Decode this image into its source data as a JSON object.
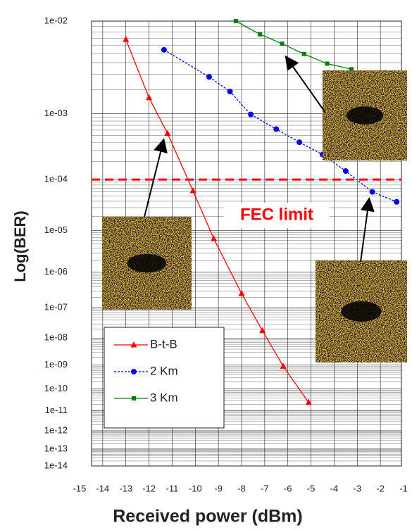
{
  "chart_data": {
    "type": "line",
    "x_label": "Received power (dBm)",
    "y_label": "Log(BER)",
    "yscale": "loglog",
    "grid": true,
    "legend": "lower left",
    "xlim": [
      -15,
      -1
    ],
    "xticks": [
      -15,
      -14,
      -13,
      -12,
      -11,
      -10,
      -9,
      -8,
      -7,
      -6,
      -5,
      -4,
      -3,
      -2,
      -1
    ],
    "ylim": [
      0.01,
      1e-14
    ],
    "yticks": [
      {
        "value": 0.01,
        "label": "1e-02"
      },
      {
        "value": 0.001,
        "label": "1e-03"
      },
      {
        "value": 0.0001,
        "label": "1e-04"
      },
      {
        "value": 1e-05,
        "label": "1e-05"
      },
      {
        "value": 1e-06,
        "label": "1e-06"
      },
      {
        "value": 1e-07,
        "label": "1e-07"
      },
      {
        "value": 1e-08,
        "label": "1e-08"
      },
      {
        "value": 1e-09,
        "label": "1e-09"
      },
      {
        "value": 1e-10,
        "label": "1e-10"
      },
      {
        "value": 1e-11,
        "label": "1e-11"
      },
      {
        "value": 1e-12,
        "label": "1e-12"
      },
      {
        "value": 1e-13,
        "label": "1e-13"
      },
      {
        "value": 1e-14,
        "label": "1e-14"
      }
    ],
    "fec_limit": {
      "value": 0.0001,
      "label": "FEC limit",
      "color": "#ff0000"
    },
    "series": [
      {
        "name": "B-t-B",
        "color": "#ff0000",
        "marker": "triangle",
        "dash": "solid",
        "x": [
          -13,
          -12,
          -11.2,
          -10.1,
          -9.2,
          -8,
          -7.1,
          -6.2,
          -5.1
        ],
        "values": [
          0.0068,
          0.0016,
          0.00054,
          6.3e-05,
          6.6e-06,
          2.6e-07,
          1.8e-08,
          8.9e-10,
          2.5e-11
        ]
      },
      {
        "name": "2 Km",
        "color": "#0000ff",
        "marker": "circle",
        "dash": "dashed",
        "x": [
          -11.35,
          -9.4,
          -8.5,
          -7.6,
          -6.5,
          -5.5,
          -4.5,
          -3.5,
          -2.35,
          -1.3
        ],
        "values": [
          0.0054,
          0.0028,
          0.0019,
          0.00098,
          0.00062,
          0.0004,
          0.00026,
          0.00014,
          6e-05,
          3.9e-05
        ]
      },
      {
        "name": "3 Km",
        "color": "#008000",
        "marker": "square",
        "dash": "solid",
        "x": [
          -8.25,
          -7.2,
          -6.25,
          -5.3,
          -4.3,
          -3.25
        ],
        "values": [
          0.01,
          0.0076,
          0.0062,
          0.0049,
          0.0039,
          0.0034
        ]
      }
    ]
  }
}
